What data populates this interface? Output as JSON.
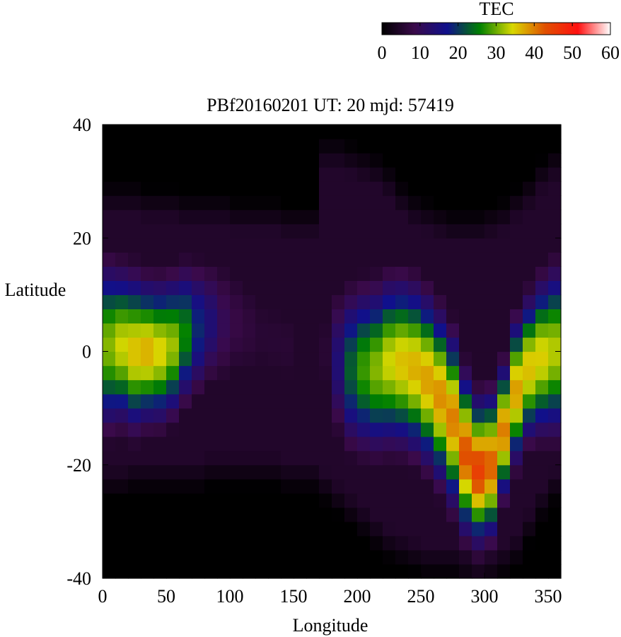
{
  "chart_data": {
    "type": "heatmap",
    "title": "PBf20160201  UT: 20  mjd: 57419",
    "xlabel": "Longitude",
    "ylabel": "Latitude",
    "xlim": [
      0,
      360
    ],
    "ylim": [
      -40,
      40
    ],
    "x_ticks": [
      "0",
      "50",
      "100",
      "150",
      "200",
      "250",
      "300",
      "350"
    ],
    "y_ticks": [
      "40",
      "20",
      "0",
      "-20",
      "-40"
    ],
    "colorbar": {
      "label": "TEC",
      "range": [
        0,
        60
      ],
      "ticks": [
        "0",
        "10",
        "20",
        "30",
        "40",
        "50",
        "60"
      ],
      "palette": [
        "#000000",
        "#3a0a4a",
        "#10108c",
        "#008000",
        "#d8d800",
        "#e05000",
        "#ff1010",
        "#ffffff"
      ]
    },
    "grid": {
      "lon_step": 10,
      "lat_step": 2.5
    },
    "tec_longitude_profile": [
      {
        "lon": 0,
        "tec": 31,
        "lat_center": 1,
        "width": 13,
        "north_extent": 30,
        "south_extent": -26
      },
      {
        "lon": 10,
        "tec": 34,
        "lat_center": 1,
        "width": 12,
        "north_extent": 30,
        "south_extent": -26
      },
      {
        "lon": 20,
        "tec": 36,
        "lat_center": 0,
        "width": 12,
        "north_extent": 30,
        "south_extent": -25
      },
      {
        "lon": 30,
        "tec": 37,
        "lat_center": 0,
        "width": 11,
        "north_extent": 29,
        "south_extent": -25
      },
      {
        "lon": 40,
        "tec": 35,
        "lat_center": 0,
        "width": 11,
        "north_extent": 29,
        "south_extent": -25
      },
      {
        "lon": 50,
        "tec": 32,
        "lat_center": 1,
        "width": 11,
        "north_extent": 29,
        "south_extent": -25
      },
      {
        "lon": 60,
        "tec": 26,
        "lat_center": 3,
        "width": 11,
        "north_extent": 28,
        "south_extent": -25
      },
      {
        "lon": 70,
        "tec": 19,
        "lat_center": 4,
        "width": 11,
        "north_extent": 28,
        "south_extent": -25
      },
      {
        "lon": 80,
        "tec": 14,
        "lat_center": 5,
        "width": 11,
        "north_extent": 28,
        "south_extent": -24
      },
      {
        "lon": 90,
        "tec": 10,
        "lat_center": 5,
        "width": 12,
        "north_extent": 28,
        "south_extent": -24
      },
      {
        "lon": 100,
        "tec": 8,
        "lat_center": 5,
        "width": 12,
        "north_extent": 27,
        "south_extent": -24
      },
      {
        "lon": 110,
        "tec": 7,
        "lat_center": 4,
        "width": 12,
        "north_extent": 27,
        "south_extent": -24
      },
      {
        "lon": 120,
        "tec": 6,
        "lat_center": 3,
        "width": 12,
        "north_extent": 27,
        "south_extent": -24
      },
      {
        "lon": 130,
        "tec": 6,
        "lat_center": 2,
        "width": 12,
        "north_extent": 27,
        "south_extent": -24
      },
      {
        "lon": 140,
        "tec": 6,
        "lat_center": 1,
        "width": 12,
        "north_extent": 26,
        "south_extent": -25
      },
      {
        "lon": 150,
        "tec": 5,
        "lat_center": 0,
        "width": 12,
        "north_extent": 26,
        "south_extent": -25
      },
      {
        "lon": 160,
        "tec": 5,
        "lat_center": 0,
        "width": 12,
        "north_extent": 26,
        "south_extent": -25
      },
      {
        "lon": 170,
        "tec": 6,
        "lat_center": 0,
        "width": 12,
        "north_extent": 38,
        "south_extent": -27
      },
      {
        "lon": 180,
        "tec": 14,
        "lat_center": -2,
        "width": 13,
        "north_extent": 38,
        "south_extent": -29
      },
      {
        "lon": 190,
        "tec": 23,
        "lat_center": -3,
        "width": 13,
        "north_extent": 37,
        "south_extent": -31
      },
      {
        "lon": 200,
        "tec": 28,
        "lat_center": -3,
        "width": 13,
        "north_extent": 36,
        "south_extent": -33
      },
      {
        "lon": 210,
        "tec": 31,
        "lat_center": -3,
        "width": 13,
        "north_extent": 35,
        "south_extent": -35
      },
      {
        "lon": 220,
        "tec": 34,
        "lat_center": -2,
        "width": 13,
        "north_extent": 33,
        "south_extent": -37
      },
      {
        "lon": 230,
        "tec": 36,
        "lat_center": -2,
        "width": 13,
        "north_extent": 30,
        "south_extent": -38
      },
      {
        "lon": 240,
        "tec": 37,
        "lat_center": -3,
        "width": 13,
        "north_extent": 28,
        "south_extent": -39
      },
      {
        "lon": 250,
        "tec": 38,
        "lat_center": -5,
        "width": 13,
        "north_extent": 27,
        "south_extent": -40
      },
      {
        "lon": 260,
        "tec": 39,
        "lat_center": -8,
        "width": 13,
        "north_extent": 26,
        "south_extent": -40
      },
      {
        "lon": 270,
        "tec": 40,
        "lat_center": -12,
        "width": 13,
        "north_extent": 25,
        "south_extent": -40
      },
      {
        "lon": 280,
        "tec": 43,
        "lat_center": -18,
        "width": 12,
        "north_extent": 25,
        "south_extent": -40
      },
      {
        "lon": 290,
        "tec": 45,
        "lat_center": -21,
        "width": 11,
        "north_extent": 25,
        "south_extent": -40
      },
      {
        "lon": 300,
        "tec": 42,
        "lat_center": -20,
        "width": 11,
        "north_extent": 26,
        "south_extent": -40
      },
      {
        "lon": 310,
        "tec": 40,
        "lat_center": -14,
        "width": 10,
        "north_extent": 27,
        "south_extent": -40
      },
      {
        "lon": 320,
        "tec": 38,
        "lat_center": -7,
        "width": 11,
        "north_extent": 29,
        "south_extent": -38
      },
      {
        "lon": 330,
        "tec": 36,
        "lat_center": -3,
        "width": 11,
        "north_extent": 31,
        "south_extent": -34
      },
      {
        "lon": 340,
        "tec": 35,
        "lat_center": -1,
        "width": 12,
        "north_extent": 34,
        "south_extent": -30
      },
      {
        "lon": 350,
        "tec": 33,
        "lat_center": 0,
        "width": 13,
        "north_extent": 36,
        "south_extent": -27
      }
    ]
  }
}
